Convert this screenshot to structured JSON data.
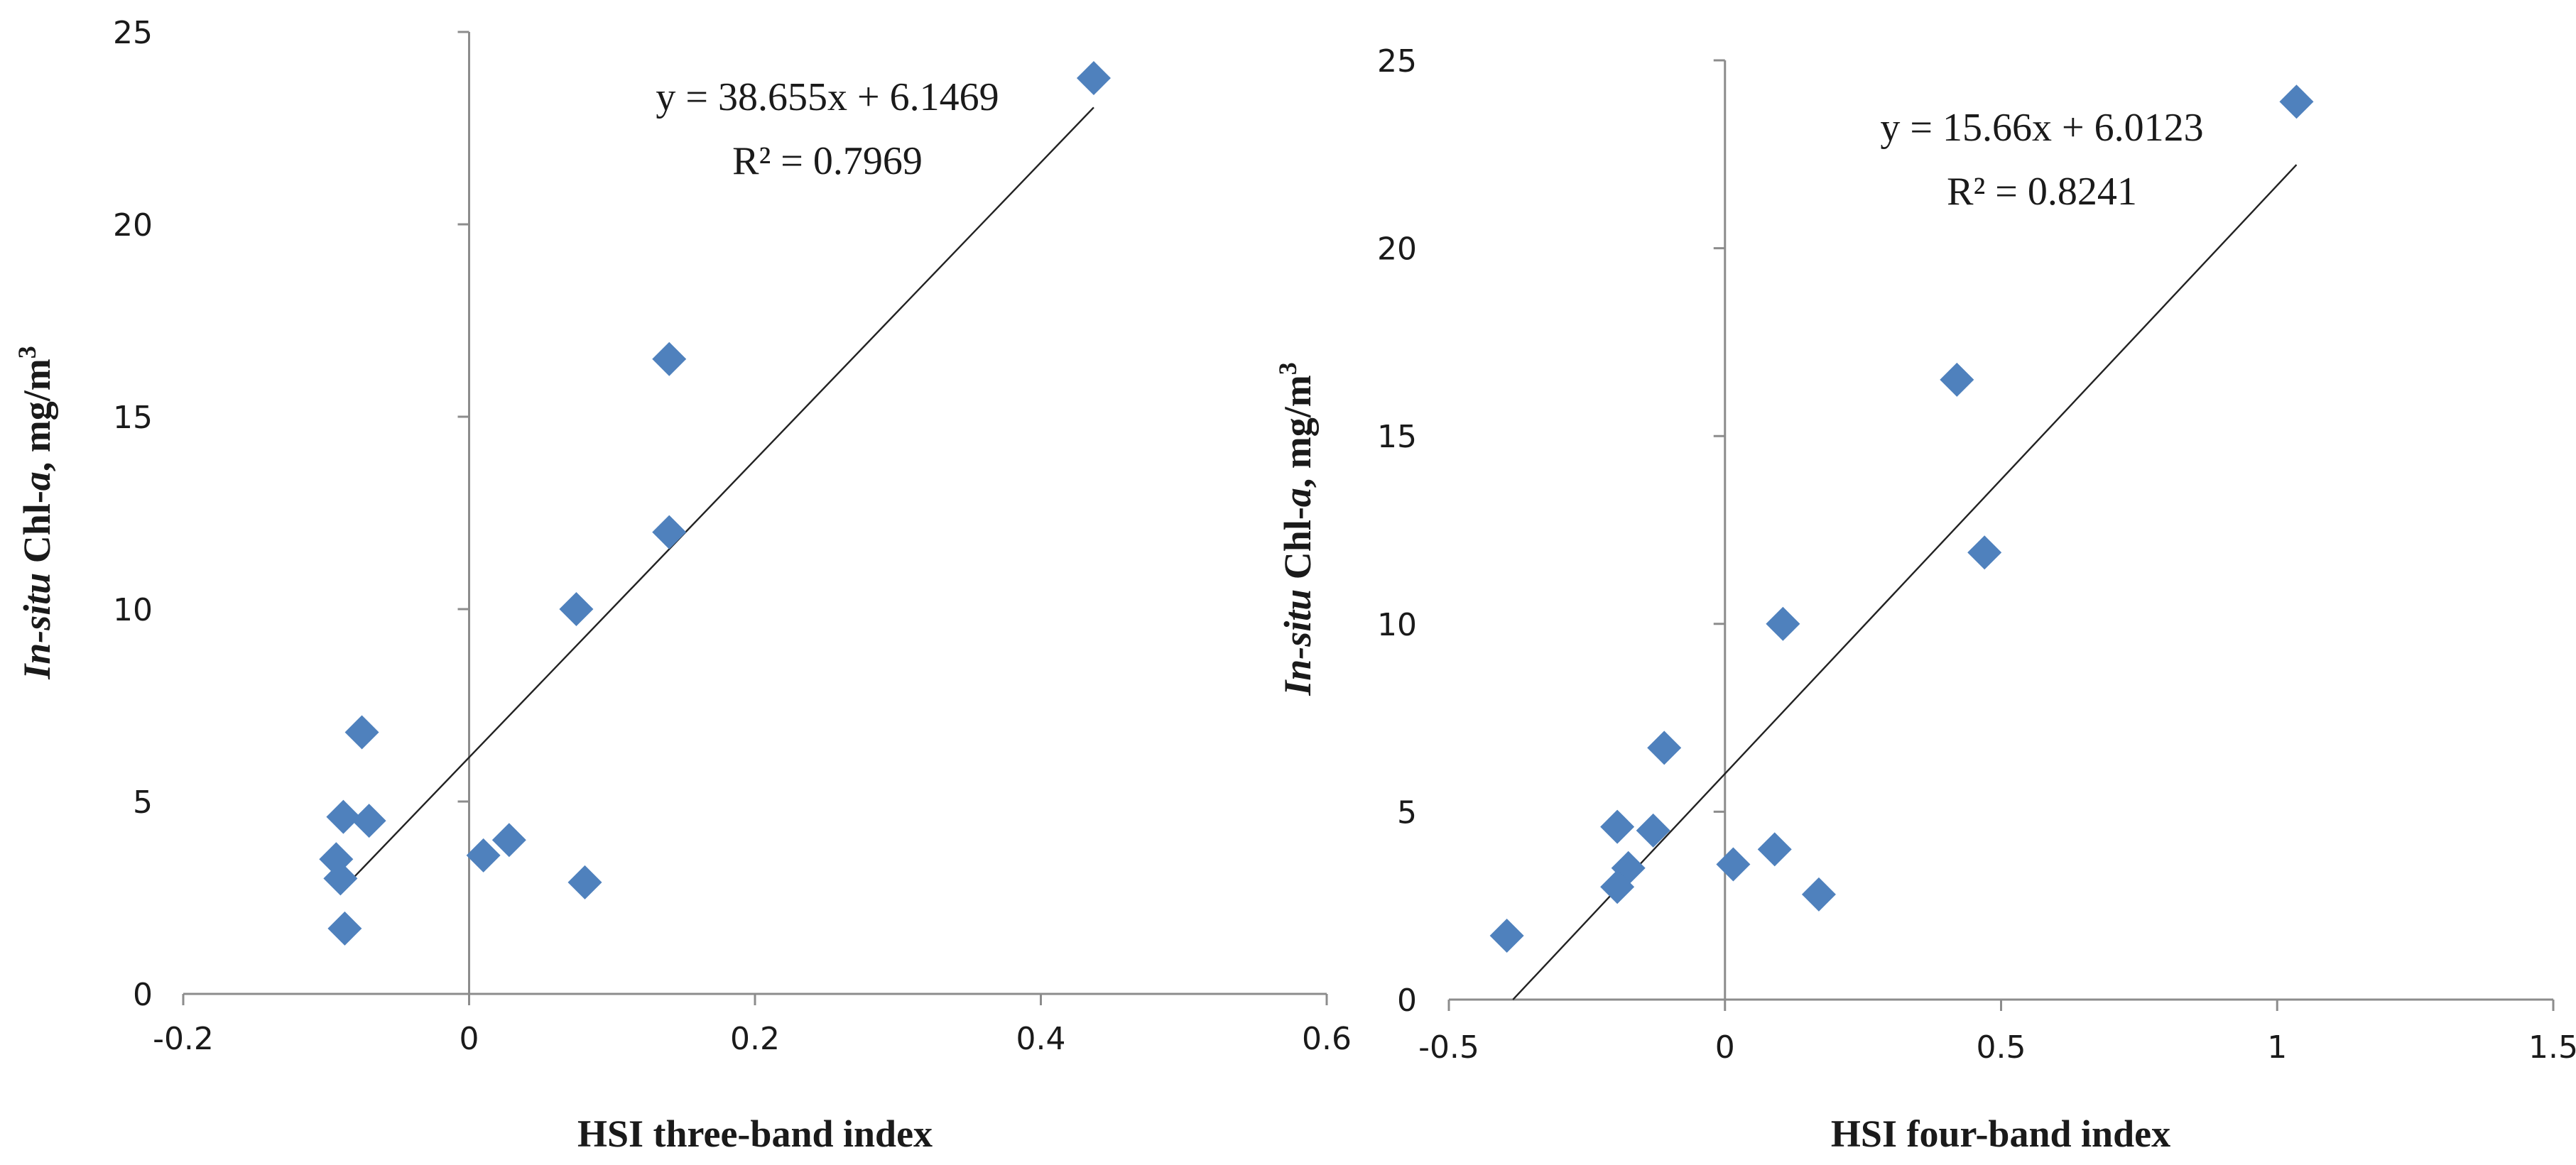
{
  "marker_color": "#4F81BD",
  "marker_shape": "diamond",
  "chart_data": [
    {
      "type": "scatter",
      "xlabel": "HSI three-band index",
      "ylabel": {
        "prefix": "In-situ",
        "main": "Chl-",
        "italic": "a",
        "unit": ", mg/m",
        "sup": "3"
      },
      "xlim": [
        -0.2,
        0.6
      ],
      "ylim": [
        0,
        25
      ],
      "xticks": [
        -0.2,
        0,
        0.2,
        0.4,
        0.6
      ],
      "xtick_labels": [
        "-0.2",
        "0",
        "0.2",
        "0.4",
        "0.6"
      ],
      "yticks": [
        0,
        5,
        10,
        15,
        20,
        25
      ],
      "ytick_labels": [
        "0",
        "5",
        "10",
        "15",
        "20",
        "25"
      ],
      "grid": false,
      "trendline": {
        "slope": 38.655,
        "intercept": 6.1469,
        "x_range": [
          -0.088,
          0.437
        ]
      },
      "equation": "y = 38.655x + 6.1469",
      "r2": "R² = 0.7969",
      "points": [
        {
          "x": 0.437,
          "y": 23.8
        },
        {
          "x": 0.14,
          "y": 16.5
        },
        {
          "x": 0.14,
          "y": 12.0
        },
        {
          "x": 0.075,
          "y": 10.0
        },
        {
          "x": -0.075,
          "y": 6.8
        },
        {
          "x": -0.088,
          "y": 4.6
        },
        {
          "x": -0.07,
          "y": 4.5
        },
        {
          "x": -0.093,
          "y": 3.5
        },
        {
          "x": -0.09,
          "y": 3.0
        },
        {
          "x": -0.087,
          "y": 1.7
        },
        {
          "x": 0.01,
          "y": 3.6
        },
        {
          "x": 0.028,
          "y": 4.0
        },
        {
          "x": 0.081,
          "y": 2.9
        }
      ]
    },
    {
      "type": "scatter",
      "xlabel": "HSI four-band index",
      "ylabel": {
        "prefix": "In-situ",
        "main": "Chl-",
        "italic": "a",
        "unit": ", mg/m",
        "sup": "3"
      },
      "xlim": [
        -0.5,
        1.5
      ],
      "ylim": [
        0,
        25
      ],
      "xticks": [
        -0.5,
        0,
        0.5,
        1,
        1.5
      ],
      "xtick_labels": [
        "-0.5",
        "0",
        "0.5",
        "1",
        "1.5"
      ],
      "yticks": [
        0,
        5,
        10,
        15,
        20,
        25
      ],
      "ytick_labels": [
        "0",
        "5",
        "10",
        "15",
        "20",
        "25"
      ],
      "grid": false,
      "trendline": {
        "slope": 15.66,
        "intercept": 6.0123,
        "x_range": [
          -0.384,
          1.035
        ]
      },
      "equation": "y = 15.66x + 6.0123",
      "r2": "R² = 0.8241",
      "points": [
        {
          "x": 1.035,
          "y": 23.9
        },
        {
          "x": 0.42,
          "y": 16.5
        },
        {
          "x": 0.47,
          "y": 11.9
        },
        {
          "x": 0.105,
          "y": 10.0
        },
        {
          "x": -0.11,
          "y": 6.7
        },
        {
          "x": -0.195,
          "y": 4.6
        },
        {
          "x": -0.13,
          "y": 4.5
        },
        {
          "x": -0.175,
          "y": 3.5
        },
        {
          "x": -0.195,
          "y": 3.0
        },
        {
          "x": -0.395,
          "y": 1.7
        },
        {
          "x": 0.015,
          "y": 3.6
        },
        {
          "x": 0.09,
          "y": 4.0
        },
        {
          "x": 0.17,
          "y": 2.8
        }
      ]
    }
  ]
}
